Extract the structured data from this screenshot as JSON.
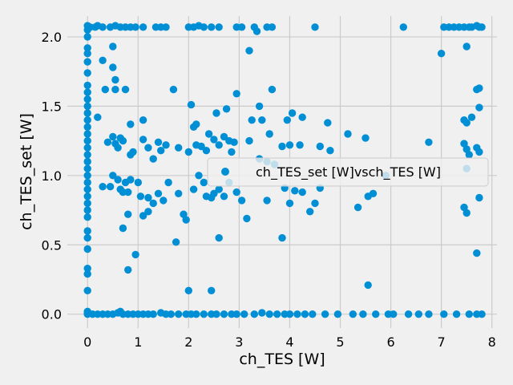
{
  "chart_data": {
    "type": "scatter",
    "title": "",
    "xlabel": "ch_TES [W]",
    "ylabel": "ch_TES_set [W]",
    "xlim": [
      -0.4,
      8.1
    ],
    "ylim": [
      -0.1,
      2.15
    ],
    "xticks": [
      0,
      1,
      2,
      3,
      4,
      5,
      6,
      7,
      8
    ],
    "yticks": [
      0.0,
      0.5,
      1.0,
      1.5,
      2.0
    ],
    "xtick_labels": [
      "0",
      "1",
      "2",
      "3",
      "4",
      "5",
      "6",
      "7",
      "8"
    ],
    "ytick_labels": [
      "0.0",
      "0.5",
      "1.0",
      "1.5",
      "2.0"
    ],
    "grid": true,
    "legend_position": "center-right",
    "colors": {
      "series": "#008fd5",
      "background": "#f0f0f0",
      "grid": "#cbcbcb"
    },
    "series": [
      {
        "name": "ch_TES_set [W]vsch_TES [W]",
        "points": [
          [
            0,
            2.08
          ],
          [
            0.05,
            2.07
          ],
          [
            0.15,
            2.07
          ],
          [
            0.2,
            2.08
          ],
          [
            0.3,
            2.07
          ],
          [
            0.45,
            2.07
          ],
          [
            0.55,
            2.08
          ],
          [
            0.65,
            2.07
          ],
          [
            0.75,
            2.07
          ],
          [
            0.85,
            2.07
          ],
          [
            0.95,
            2.07
          ],
          [
            1.1,
            2.07
          ],
          [
            1.35,
            2.07
          ],
          [
            1.45,
            2.07
          ],
          [
            1.55,
            2.07
          ],
          [
            2.0,
            2.07
          ],
          [
            2.1,
            2.07
          ],
          [
            2.2,
            2.08
          ],
          [
            2.3,
            2.07
          ],
          [
            2.45,
            2.07
          ],
          [
            2.6,
            2.07
          ],
          [
            2.95,
            2.07
          ],
          [
            3.05,
            2.07
          ],
          [
            3.3,
            2.07
          ],
          [
            3.35,
            2.04
          ],
          [
            3.55,
            2.07
          ],
          [
            3.65,
            2.07
          ],
          [
            4.5,
            2.07
          ],
          [
            6.25,
            2.07
          ],
          [
            7.05,
            2.07
          ],
          [
            7.15,
            2.07
          ],
          [
            7.25,
            2.07
          ],
          [
            7.35,
            2.07
          ],
          [
            7.45,
            2.07
          ],
          [
            7.55,
            2.07
          ],
          [
            7.6,
            2.07
          ],
          [
            7.7,
            2.08
          ],
          [
            7.75,
            2.07
          ],
          [
            7.8,
            2.07
          ],
          [
            0,
            2.05
          ],
          [
            0,
            2.0
          ],
          [
            0,
            1.92
          ],
          [
            0,
            1.88
          ],
          [
            0,
            1.82
          ],
          [
            0,
            1.74
          ],
          [
            0,
            1.65
          ],
          [
            0,
            1.6
          ],
          [
            0,
            1.55
          ],
          [
            0,
            1.5
          ],
          [
            0,
            1.45
          ],
          [
            0,
            1.4
          ],
          [
            0,
            1.35
          ],
          [
            0,
            1.3
          ],
          [
            0,
            1.25
          ],
          [
            0,
            1.2
          ],
          [
            0,
            1.15
          ],
          [
            0,
            1.1
          ],
          [
            0,
            1.05
          ],
          [
            0,
            1.0
          ],
          [
            0,
            0.95
          ],
          [
            0,
            0.9
          ],
          [
            0,
            0.85
          ],
          [
            0,
            0.8
          ],
          [
            0,
            0.75
          ],
          [
            0,
            0.7
          ],
          [
            0,
            0.6
          ],
          [
            0,
            0.55
          ],
          [
            0,
            0.47
          ],
          [
            0,
            0.33
          ],
          [
            0,
            0.29
          ],
          [
            0,
            0.17
          ],
          [
            0,
            0.02
          ],
          [
            0,
            0.01
          ],
          [
            0,
            0.0
          ],
          [
            0.1,
            0.0
          ],
          [
            0.2,
            0.0
          ],
          [
            0.3,
            0.0
          ],
          [
            0.4,
            0.0
          ],
          [
            0.5,
            0.0
          ],
          [
            0.6,
            0.01
          ],
          [
            0.65,
            0.02
          ],
          [
            0.7,
            0.0
          ],
          [
            0.8,
            0.0
          ],
          [
            0.9,
            0.0
          ],
          [
            1.0,
            0.0
          ],
          [
            1.1,
            0.0
          ],
          [
            1.2,
            0.0
          ],
          [
            1.3,
            0.0
          ],
          [
            1.45,
            0.01
          ],
          [
            1.55,
            0.0
          ],
          [
            1.65,
            0.0
          ],
          [
            1.8,
            0.0
          ],
          [
            1.95,
            0.0
          ],
          [
            2.05,
            0.0
          ],
          [
            2.15,
            0.0
          ],
          [
            2.3,
            0.0
          ],
          [
            2.45,
            0.0
          ],
          [
            2.55,
            0.0
          ],
          [
            2.7,
            0.0
          ],
          [
            2.85,
            0.0
          ],
          [
            2.95,
            0.0
          ],
          [
            3.1,
            0.0
          ],
          [
            3.3,
            0.0
          ],
          [
            3.45,
            0.01
          ],
          [
            3.6,
            0.0
          ],
          [
            3.75,
            0.0
          ],
          [
            3.9,
            0.0
          ],
          [
            4.0,
            0.0
          ],
          [
            4.15,
            0.0
          ],
          [
            4.3,
            0.0
          ],
          [
            4.45,
            0.0
          ],
          [
            4.7,
            0.0
          ],
          [
            4.95,
            0.0
          ],
          [
            5.25,
            0.0
          ],
          [
            5.45,
            0.0
          ],
          [
            5.7,
            0.0
          ],
          [
            5.95,
            0.0
          ],
          [
            6.05,
            0.0
          ],
          [
            6.35,
            0.0
          ],
          [
            6.55,
            0.0
          ],
          [
            6.75,
            0.0
          ],
          [
            7.05,
            0.0
          ],
          [
            7.3,
            0.0
          ],
          [
            7.55,
            0.0
          ],
          [
            7.7,
            0.0
          ],
          [
            7.8,
            0.0
          ],
          [
            0.2,
            1.42
          ],
          [
            0.3,
            1.83
          ],
          [
            0.35,
            1.62
          ],
          [
            0.5,
            1.93
          ],
          [
            0.5,
            1.78
          ],
          [
            0.55,
            1.69
          ],
          [
            0.55,
            1.62
          ],
          [
            0.75,
            1.62
          ],
          [
            0.85,
            1.37
          ],
          [
            1.1,
            1.4
          ],
          [
            1.7,
            1.62
          ],
          [
            2.05,
            1.51
          ],
          [
            2.1,
            1.35
          ],
          [
            2.15,
            1.37
          ],
          [
            2.4,
            1.3
          ],
          [
            2.55,
            1.45
          ],
          [
            2.75,
            1.48
          ],
          [
            2.8,
            1.25
          ],
          [
            2.95,
            1.59
          ],
          [
            3.25,
            1.4
          ],
          [
            3.4,
            1.5
          ],
          [
            3.45,
            1.4
          ],
          [
            3.6,
            1.3
          ],
          [
            3.65,
            1.62
          ],
          [
            3.95,
            1.4
          ],
          [
            4.05,
            1.45
          ],
          [
            4.25,
            1.42
          ],
          [
            4.75,
            1.38
          ],
          [
            3.2,
            1.9
          ],
          [
            7.0,
            1.88
          ],
          [
            7.5,
            1.93
          ],
          [
            7.45,
            1.4
          ],
          [
            7.5,
            1.38
          ],
          [
            7.6,
            1.42
          ],
          [
            7.7,
            1.62
          ],
          [
            7.75,
            1.49
          ],
          [
            7.75,
            1.63
          ],
          [
            0.4,
            1.24
          ],
          [
            0.5,
            1.28
          ],
          [
            0.55,
            1.23
          ],
          [
            0.6,
            1.2
          ],
          [
            0.65,
            1.27
          ],
          [
            0.7,
            1.25
          ],
          [
            0.85,
            1.15
          ],
          [
            0.9,
            1.17
          ],
          [
            1.1,
            1.26
          ],
          [
            1.2,
            1.2
          ],
          [
            1.3,
            1.12
          ],
          [
            1.4,
            1.24
          ],
          [
            1.45,
            1.18
          ],
          [
            1.55,
            1.22
          ],
          [
            1.8,
            1.2
          ],
          [
            2.0,
            1.17
          ],
          [
            2.15,
            1.22
          ],
          [
            2.25,
            1.21
          ],
          [
            2.35,
            1.18
          ],
          [
            2.5,
            1.26
          ],
          [
            2.6,
            1.22
          ],
          [
            2.7,
            1.28
          ],
          [
            2.85,
            1.17
          ],
          [
            2.9,
            1.24
          ],
          [
            3.2,
            1.25
          ],
          [
            3.4,
            1.12
          ],
          [
            3.55,
            1.1
          ],
          [
            3.7,
            1.08
          ],
          [
            3.85,
            1.21
          ],
          [
            4.0,
            1.22
          ],
          [
            4.2,
            1.22
          ],
          [
            4.6,
            1.21
          ],
          [
            4.8,
            1.18
          ],
          [
            5.5,
            1.27
          ],
          [
            5.15,
            1.3
          ],
          [
            6.75,
            1.24
          ],
          [
            7.45,
            1.23
          ],
          [
            7.5,
            1.19
          ],
          [
            7.7,
            1.2
          ],
          [
            7.75,
            1.17
          ],
          [
            0.3,
            0.92
          ],
          [
            0.45,
            0.92
          ],
          [
            0.5,
            1.0
          ],
          [
            0.6,
            0.97
          ],
          [
            0.65,
            0.9
          ],
          [
            0.7,
            0.88
          ],
          [
            0.75,
            0.95
          ],
          [
            0.8,
            0.88
          ],
          [
            0.85,
            0.97
          ],
          [
            1.0,
            0.95
          ],
          [
            1.05,
            0.85
          ],
          [
            1.2,
            0.84
          ],
          [
            1.3,
            0.8
          ],
          [
            1.4,
            0.87
          ],
          [
            1.5,
            0.82
          ],
          [
            1.6,
            0.95
          ],
          [
            1.8,
            0.87
          ],
          [
            1.9,
            0.72
          ],
          [
            1.95,
            0.68
          ],
          [
            2.1,
            0.9
          ],
          [
            2.2,
            1.0
          ],
          [
            2.3,
            0.95
          ],
          [
            2.35,
            0.85
          ],
          [
            2.45,
            0.84
          ],
          [
            2.5,
            0.87
          ],
          [
            2.6,
            0.9
          ],
          [
            2.7,
            0.85
          ],
          [
            2.8,
            0.95
          ],
          [
            2.95,
            0.88
          ],
          [
            3.05,
            0.82
          ],
          [
            3.55,
            0.82
          ],
          [
            3.9,
            0.91
          ],
          [
            4.0,
            0.8
          ],
          [
            4.1,
            0.89
          ],
          [
            4.25,
            0.88
          ],
          [
            4.4,
            0.74
          ],
          [
            4.5,
            0.8
          ],
          [
            4.6,
            0.91
          ],
          [
            5.35,
            0.77
          ],
          [
            5.55,
            0.85
          ],
          [
            5.65,
            0.87
          ],
          [
            5.9,
            1.0
          ],
          [
            7.45,
            0.77
          ],
          [
            7.5,
            0.73
          ],
          [
            7.75,
            0.84
          ],
          [
            7.5,
            1.05
          ],
          [
            7.55,
            1.15
          ],
          [
            0.7,
            0.62
          ],
          [
            0.8,
            0.72
          ],
          [
            0.8,
            0.32
          ],
          [
            0.95,
            0.43
          ],
          [
            1.1,
            0.71
          ],
          [
            1.2,
            0.74
          ],
          [
            1.75,
            0.52
          ],
          [
            2.0,
            0.17
          ],
          [
            2.45,
            0.17
          ],
          [
            2.6,
            0.55
          ],
          [
            3.15,
            0.69
          ],
          [
            3.85,
            0.55
          ],
          [
            5.55,
            0.21
          ],
          [
            7.7,
            0.44
          ]
        ]
      }
    ]
  }
}
